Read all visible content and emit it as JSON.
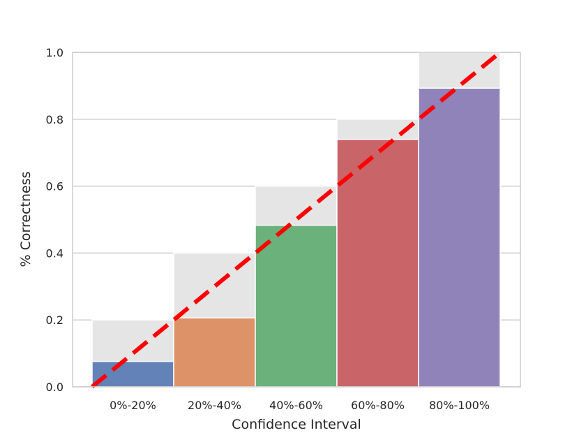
{
  "chart_data": {
    "type": "bar",
    "categories": [
      "0%-20%",
      "20%-40%",
      "40%-60%",
      "60%-80%",
      "80%-100%"
    ],
    "series": [
      {
        "values": [
          0.076,
          0.206,
          0.483,
          0.74,
          0.893
        ],
        "colors": [
          "#4c72b0",
          "#dd8452",
          "#55a868",
          "#c44e52",
          "#8172b3"
        ]
      }
    ],
    "expected_values": [
      0.2,
      0.4,
      0.6,
      0.8,
      1.0
    ],
    "expected_color": "#e5e5e5",
    "diagonal": {
      "from": [
        0,
        0
      ],
      "to": [
        1,
        1
      ],
      "color": "#ff0000",
      "style": "dashed"
    },
    "xlabel": "Confidence Interval",
    "ylabel": "% Correctness",
    "ylim": [
      0,
      1
    ],
    "yticks": [
      "0.0",
      "0.2",
      "0.4",
      "0.6",
      "0.8",
      "1.0"
    ],
    "grid": true
  }
}
